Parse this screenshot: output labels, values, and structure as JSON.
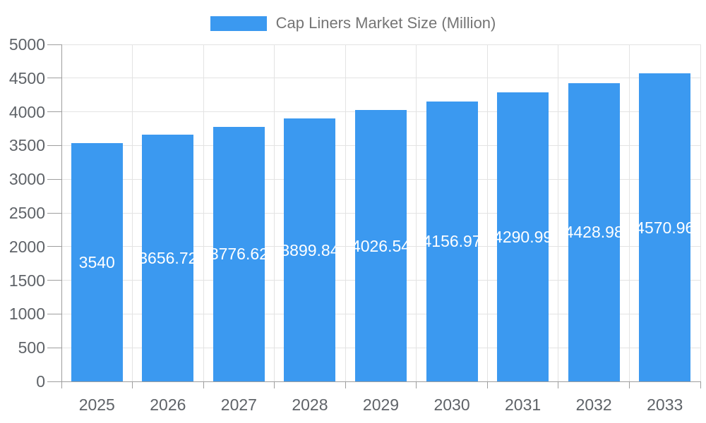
{
  "chart_data": {
    "type": "bar",
    "title": "Cap Liners Market Size (Million)",
    "categories": [
      "2025",
      "2026",
      "2027",
      "2028",
      "2029",
      "2030",
      "2031",
      "2032",
      "2033"
    ],
    "values": [
      3540,
      3656.72,
      3776.62,
      3899.84,
      4026.54,
      4156.97,
      4290.99,
      4428.98,
      4570.96
    ],
    "value_labels": [
      "3540",
      "3656.72",
      "3776.62",
      "3899.84",
      "4026.54",
      "4156.97",
      "4290.99",
      "4428.98",
      "4570.96"
    ],
    "xlabel": "",
    "ylabel": "",
    "ylim": [
      0,
      5000
    ],
    "y_tick_step": 500,
    "y_tick_labels": [
      "0",
      "500",
      "1000",
      "1500",
      "2000",
      "2500",
      "3000",
      "3500",
      "4000",
      "4500",
      "5000"
    ],
    "grid": true,
    "legend_position": "top",
    "colors": {
      "bar": "#3B99F0",
      "value_label": "#FFFFFF",
      "tick_label": "#5F6368",
      "title_text": "#757575",
      "gridline": "#E3E3E3",
      "axis": "#9E9E9E"
    }
  }
}
